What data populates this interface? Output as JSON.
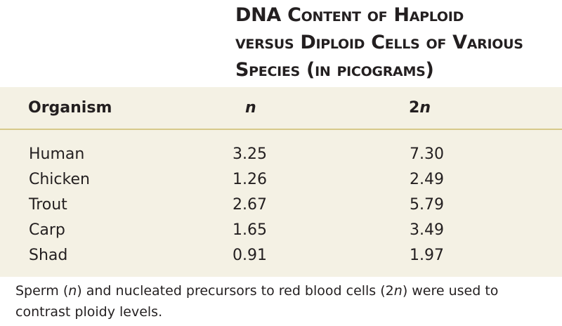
{
  "title": {
    "line1": "DNA Content of Haploid",
    "line2": "versus Diploid Cells of Various",
    "line3": "Species (in picograms)"
  },
  "table": {
    "headers": {
      "organism": "Organism",
      "n": "n",
      "two_n_prefix": "2",
      "two_n_italic": "n"
    },
    "rows": [
      {
        "organism": "Human",
        "n": "3.25",
        "two_n": "7.30"
      },
      {
        "organism": "Chicken",
        "n": "1.26",
        "two_n": "2.49"
      },
      {
        "organism": "Trout",
        "n": "2.67",
        "two_n": "5.79"
      },
      {
        "organism": "Carp",
        "n": "1.65",
        "two_n": "3.49"
      },
      {
        "organism": "Shad",
        "n": "0.91",
        "two_n": "1.97"
      }
    ]
  },
  "footnote": {
    "part1": "Sperm (",
    "italic1": "n",
    "part2": ") and nucleated precursors to red blood cells (2",
    "italic2": "n",
    "part3": ") were used to contrast ploidy levels."
  }
}
